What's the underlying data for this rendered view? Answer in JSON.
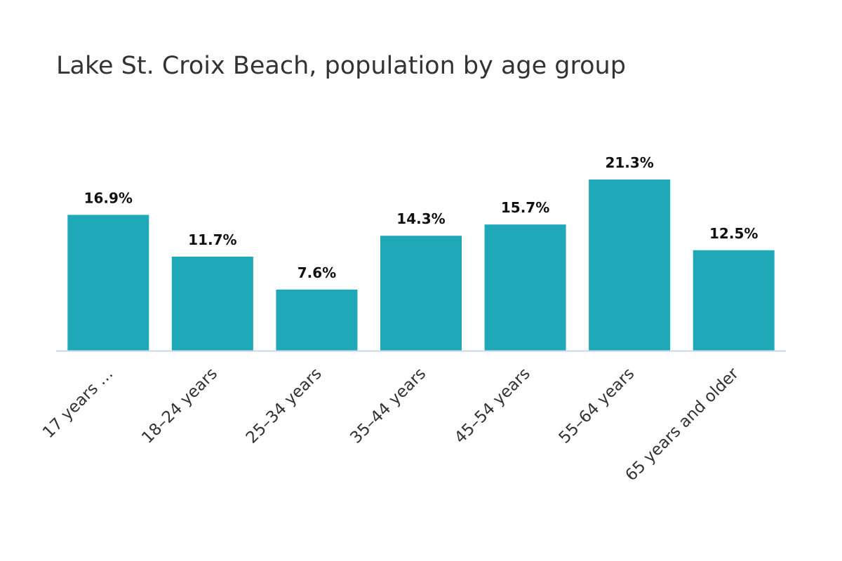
{
  "chart_data": {
    "type": "bar",
    "title": "Lake St. Croix Beach, population by age group",
    "categories": [
      "17 years …",
      "18–24 years",
      "25–34 years",
      "35–44 years",
      "45–54 years",
      "55–64 years",
      "65 years and older"
    ],
    "values": [
      16.9,
      11.7,
      7.6,
      14.3,
      15.7,
      21.3,
      12.5
    ],
    "data_labels": [
      "16.9%",
      "11.7%",
      "7.6%",
      "14.3%",
      "15.7%",
      "21.3%",
      "12.5%"
    ],
    "xlabel": "",
    "ylabel": "",
    "ylim": [
      0,
      21.3
    ],
    "grid": false,
    "legend": "none",
    "bar_color": "#1fa9b8",
    "axis_color": "#ccd6eb"
  }
}
